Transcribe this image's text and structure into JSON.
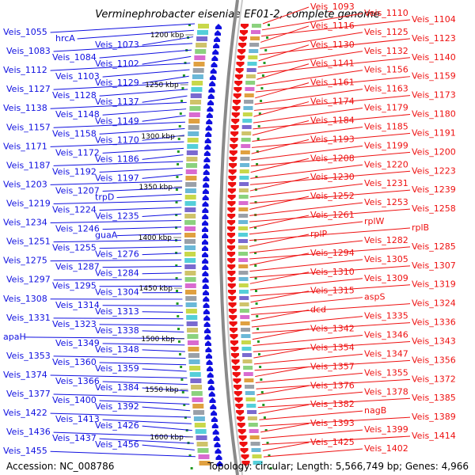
{
  "title": "Verminephrobacter eiseniae EF01-2, complete genome",
  "footer": {
    "accession": "Accession: NC_008786",
    "topology": "Topology: circular; Length: 5,566,749 bp; Genes: 4,966"
  },
  "colors": {
    "left_strand": "#1010e0",
    "right_strand": "#ee1111",
    "backbone": "#8a8a8a",
    "ticks": "#229922"
  },
  "scale_labels": [
    "1200 kbp",
    "1250 kbp",
    "1300 kbp",
    "1350 kbp",
    "1400 kbp",
    "1450 kbp",
    "1500 kbp",
    "1550 kbp",
    "1600 kbp"
  ],
  "left_labels": [
    "Veis_1055",
    "hrcA",
    "Veis_1073",
    "Veis_1083",
    "Veis_1084",
    "Veis_1102",
    "Veis_1112",
    "Veis_1103",
    "Veis_1129",
    "Veis_1127",
    "Veis_1128",
    "Veis_1137",
    "Veis_1138",
    "Veis_1148",
    "Veis_1149",
    "Veis_1157",
    "Veis_1158",
    "Veis_1170",
    "Veis_1171",
    "Veis_1172",
    "Veis_1186",
    "Veis_1187",
    "Veis_1192",
    "Veis_1197",
    "Veis_1203",
    "Veis_1207",
    "trpD",
    "Veis_1219",
    "Veis_1224",
    "Veis_1235",
    "Veis_1234",
    "Veis_1246",
    "guaA",
    "Veis_1251",
    "Veis_1255",
    "Veis_1276",
    "Veis_1275",
    "Veis_1287",
    "Veis_1284",
    "Veis_1297",
    "Veis_1295",
    "Veis_1304",
    "Veis_1308",
    "Veis_1314",
    "Veis_1313",
    "Veis_1331",
    "Veis_1323",
    "Veis_1338",
    "apaH",
    "Veis_1349",
    "Veis_1348",
    "Veis_1353",
    "Veis_1360",
    "Veis_1359",
    "Veis_1374",
    "Veis_1366",
    "Veis_1384",
    "Veis_1377",
    "Veis_1400",
    "Veis_1392",
    "Veis_1422",
    "Veis_1413",
    "Veis_1426",
    "Veis_1436",
    "Veis_1437",
    "Veis_1456",
    "Veis_1455"
  ],
  "right_labels": [
    "Veis_1093",
    "Veis_1110",
    "Veis_1104",
    "Veis_1116",
    "Veis_1125",
    "Veis_1123",
    "Veis_1130",
    "Veis_1132",
    "Veis_1140",
    "Veis_1141",
    "Veis_1156",
    "Veis_1159",
    "Veis_1161",
    "Veis_1163",
    "Veis_1173",
    "Veis_1174",
    "Veis_1179",
    "Veis_1180",
    "Veis_1184",
    "Veis_1185",
    "Veis_1191",
    "Veis_1193",
    "Veis_1199",
    "Veis_1200",
    "Veis_1208",
    "Veis_1220",
    "Veis_1223",
    "Veis_1230",
    "Veis_1231",
    "Veis_1239",
    "Veis_1252",
    "Veis_1253",
    "Veis_1258",
    "Veis_1261",
    "rplW",
    "rplB",
    "rplP",
    "Veis_1282",
    "Veis_1285",
    "Veis_1294",
    "Veis_1305",
    "Veis_1307",
    "Veis_1310",
    "Veis_1309",
    "Veis_1319",
    "Veis_1315",
    "aspS",
    "Veis_1324",
    "dcd",
    "Veis_1335",
    "Veis_1336",
    "Veis_1342",
    "Veis_1346",
    "Veis_1343",
    "Veis_1354",
    "Veis_1347",
    "Veis_1356",
    "Veis_1357",
    "Veis_1355",
    "Veis_1372",
    "Veis_1376",
    "Veis_1378",
    "Veis_1385",
    "Veis_1382",
    "nagB",
    "Veis_1389",
    "Veis_1393",
    "Veis_1399",
    "Veis_1414",
    "Veis_1425",
    "Veis_1402"
  ]
}
